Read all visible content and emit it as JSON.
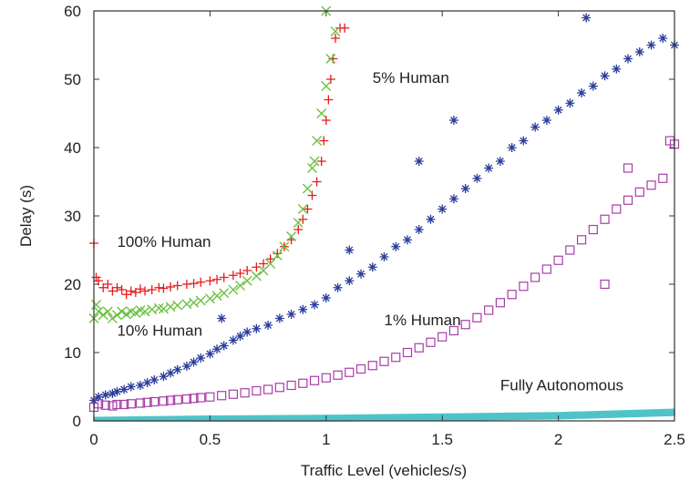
{
  "chart_data": {
    "type": "scatter",
    "title": "",
    "xlabel": "Traffic Level (vehicles/s)",
    "ylabel": "Delay (s)",
    "xlim": [
      0,
      2.5
    ],
    "ylim": [
      0,
      60
    ],
    "x_ticks": [
      "0",
      "0.5",
      "1",
      "1.5",
      "2",
      "2.5"
    ],
    "y_ticks": [
      "0",
      "10",
      "20",
      "30",
      "40",
      "50",
      "60"
    ],
    "grid": false,
    "series": [
      {
        "name": "100% Human",
        "marker": "plus",
        "color": "#e8191b",
        "points": [
          [
            0.0,
            26
          ],
          [
            0.01,
            21
          ],
          [
            0.02,
            20.5
          ],
          [
            0.04,
            19.5
          ],
          [
            0.06,
            20
          ],
          [
            0.08,
            19
          ],
          [
            0.1,
            19.5
          ],
          [
            0.12,
            19.2
          ],
          [
            0.14,
            18.5
          ],
          [
            0.16,
            19
          ],
          [
            0.18,
            18.8
          ],
          [
            0.2,
            19.3
          ],
          [
            0.22,
            19
          ],
          [
            0.25,
            19.2
          ],
          [
            0.28,
            19.5
          ],
          [
            0.3,
            19.4
          ],
          [
            0.33,
            19.6
          ],
          [
            0.36,
            19.8
          ],
          [
            0.4,
            20
          ],
          [
            0.43,
            20.1
          ],
          [
            0.46,
            20.3
          ],
          [
            0.5,
            20.5
          ],
          [
            0.53,
            20.7
          ],
          [
            0.56,
            21
          ],
          [
            0.6,
            21.3
          ],
          [
            0.63,
            21.6
          ],
          [
            0.66,
            22
          ],
          [
            0.7,
            22.5
          ],
          [
            0.73,
            23
          ],
          [
            0.76,
            23.7
          ],
          [
            0.79,
            24.5
          ],
          [
            0.82,
            25.5
          ],
          [
            0.85,
            26.5
          ],
          [
            0.88,
            28
          ],
          [
            0.9,
            29.5
          ],
          [
            0.92,
            31
          ],
          [
            0.94,
            33
          ],
          [
            0.96,
            35
          ],
          [
            0.98,
            38
          ],
          [
            0.99,
            41
          ],
          [
            1.0,
            44
          ],
          [
            1.01,
            47
          ],
          [
            1.02,
            50
          ],
          [
            1.03,
            53
          ],
          [
            1.04,
            56
          ],
          [
            1.06,
            57.5
          ],
          [
            1.08,
            57.5
          ]
        ]
      },
      {
        "name": "10% Human",
        "marker": "cross",
        "color": "#6abf40",
        "points": [
          [
            0.0,
            15
          ],
          [
            0.01,
            17
          ],
          [
            0.02,
            16
          ],
          [
            0.04,
            15.5
          ],
          [
            0.06,
            16
          ],
          [
            0.08,
            15
          ],
          [
            0.1,
            15.5
          ],
          [
            0.12,
            16
          ],
          [
            0.14,
            15.6
          ],
          [
            0.16,
            16
          ],
          [
            0.18,
            15.8
          ],
          [
            0.2,
            16.2
          ],
          [
            0.22,
            16
          ],
          [
            0.25,
            16.3
          ],
          [
            0.28,
            16.5
          ],
          [
            0.3,
            16.4
          ],
          [
            0.33,
            16.7
          ],
          [
            0.36,
            16.9
          ],
          [
            0.4,
            17.1
          ],
          [
            0.43,
            17.3
          ],
          [
            0.46,
            17.6
          ],
          [
            0.5,
            17.9
          ],
          [
            0.53,
            18.3
          ],
          [
            0.56,
            18.7
          ],
          [
            0.6,
            19.2
          ],
          [
            0.63,
            19.8
          ],
          [
            0.66,
            20.5
          ],
          [
            0.7,
            21.2
          ],
          [
            0.73,
            22
          ],
          [
            0.76,
            23
          ],
          [
            0.79,
            24.2
          ],
          [
            0.82,
            25.5
          ],
          [
            0.85,
            27
          ],
          [
            0.88,
            29
          ],
          [
            0.9,
            31
          ],
          [
            0.92,
            34
          ],
          [
            0.94,
            37
          ],
          [
            0.96,
            41
          ],
          [
            0.98,
            45
          ],
          [
            1.0,
            49
          ],
          [
            1.02,
            53
          ],
          [
            1.04,
            57
          ],
          [
            1.0,
            60
          ],
          [
            0.95,
            38
          ]
        ]
      },
      {
        "name": "5% Human",
        "marker": "star",
        "color": "#2a3d9c",
        "points": [
          [
            0.0,
            3
          ],
          [
            0.02,
            3.5
          ],
          [
            0.05,
            3.8
          ],
          [
            0.08,
            4
          ],
          [
            0.1,
            4.3
          ],
          [
            0.13,
            4.6
          ],
          [
            0.16,
            5
          ],
          [
            0.2,
            5.2
          ],
          [
            0.23,
            5.6
          ],
          [
            0.26,
            6
          ],
          [
            0.3,
            6.5
          ],
          [
            0.33,
            7
          ],
          [
            0.36,
            7.5
          ],
          [
            0.4,
            8
          ],
          [
            0.43,
            8.6
          ],
          [
            0.46,
            9.2
          ],
          [
            0.5,
            9.8
          ],
          [
            0.53,
            10.5
          ],
          [
            0.56,
            11
          ],
          [
            0.6,
            11.8
          ],
          [
            0.63,
            12.4
          ],
          [
            0.66,
            13
          ],
          [
            0.7,
            13.5
          ],
          [
            0.75,
            14
          ],
          [
            0.8,
            15
          ],
          [
            0.85,
            15.6
          ],
          [
            0.9,
            16.3
          ],
          [
            0.95,
            17
          ],
          [
            1.0,
            18
          ],
          [
            1.05,
            19.5
          ],
          [
            1.1,
            20.5
          ],
          [
            1.15,
            21.5
          ],
          [
            1.2,
            22.5
          ],
          [
            1.25,
            24
          ],
          [
            1.3,
            25.5
          ],
          [
            1.35,
            26.5
          ],
          [
            1.4,
            28
          ],
          [
            1.45,
            29.5
          ],
          [
            1.5,
            31
          ],
          [
            1.55,
            32.5
          ],
          [
            1.6,
            34
          ],
          [
            1.65,
            35.5
          ],
          [
            1.7,
            37
          ],
          [
            1.75,
            38
          ],
          [
            1.8,
            40
          ],
          [
            1.85,
            41
          ],
          [
            1.9,
            43
          ],
          [
            1.95,
            44
          ],
          [
            2.0,
            45.5
          ],
          [
            2.05,
            46.5
          ],
          [
            2.1,
            48
          ],
          [
            2.15,
            49
          ],
          [
            2.2,
            50.5
          ],
          [
            2.25,
            51.5
          ],
          [
            2.3,
            53
          ],
          [
            2.35,
            54
          ],
          [
            2.4,
            55
          ],
          [
            2.45,
            56
          ],
          [
            2.5,
            55
          ],
          [
            2.12,
            59
          ],
          [
            1.55,
            44
          ],
          [
            1.4,
            38
          ],
          [
            0.55,
            15
          ],
          [
            1.1,
            25
          ]
        ]
      },
      {
        "name": "1% Human",
        "marker": "square",
        "color": "#a83ea8",
        "points": [
          [
            0.0,
            2
          ],
          [
            0.02,
            2.5
          ],
          [
            0.05,
            2.3
          ],
          [
            0.08,
            2.2
          ],
          [
            0.1,
            2.4
          ],
          [
            0.13,
            2.4
          ],
          [
            0.16,
            2.5
          ],
          [
            0.2,
            2.6
          ],
          [
            0.23,
            2.7
          ],
          [
            0.26,
            2.8
          ],
          [
            0.3,
            2.9
          ],
          [
            0.33,
            3
          ],
          [
            0.36,
            3.1
          ],
          [
            0.4,
            3.2
          ],
          [
            0.43,
            3.3
          ],
          [
            0.46,
            3.4
          ],
          [
            0.5,
            3.5
          ],
          [
            0.55,
            3.7
          ],
          [
            0.6,
            3.9
          ],
          [
            0.65,
            4.1
          ],
          [
            0.7,
            4.4
          ],
          [
            0.75,
            4.6
          ],
          [
            0.8,
            4.9
          ],
          [
            0.85,
            5.2
          ],
          [
            0.9,
            5.5
          ],
          [
            0.95,
            5.9
          ],
          [
            1.0,
            6.3
          ],
          [
            1.05,
            6.7
          ],
          [
            1.1,
            7.1
          ],
          [
            1.15,
            7.6
          ],
          [
            1.2,
            8.1
          ],
          [
            1.25,
            8.7
          ],
          [
            1.3,
            9.3
          ],
          [
            1.35,
            10
          ],
          [
            1.4,
            10.7
          ],
          [
            1.45,
            11.5
          ],
          [
            1.5,
            12.3
          ],
          [
            1.55,
            13.2
          ],
          [
            1.6,
            14.1
          ],
          [
            1.65,
            15.1
          ],
          [
            1.7,
            16.2
          ],
          [
            1.75,
            17.3
          ],
          [
            1.8,
            18.5
          ],
          [
            1.85,
            19.7
          ],
          [
            1.9,
            21
          ],
          [
            1.95,
            22.2
          ],
          [
            2.0,
            23.5
          ],
          [
            2.05,
            25
          ],
          [
            2.1,
            26.5
          ],
          [
            2.15,
            28
          ],
          [
            2.2,
            29.5
          ],
          [
            2.25,
            31
          ],
          [
            2.3,
            32.3
          ],
          [
            2.35,
            33.5
          ],
          [
            2.4,
            34.5
          ],
          [
            2.45,
            35.5
          ],
          [
            2.48,
            41
          ],
          [
            2.5,
            40.5
          ],
          [
            2.2,
            20
          ],
          [
            2.3,
            37
          ]
        ]
      },
      {
        "name": "Fully Autonomous",
        "marker": "band",
        "color": "#4fc4c8",
        "points": [
          [
            0.0,
            0.2
          ],
          [
            0.5,
            0.4
          ],
          [
            1.0,
            0.5
          ],
          [
            1.5,
            0.7
          ],
          [
            2.0,
            0.9
          ],
          [
            2.5,
            1.4
          ]
        ]
      }
    ],
    "annotations": [
      {
        "text": "100% Human",
        "x": 0.1,
        "y": 25.5
      },
      {
        "text": "10% Human",
        "x": 0.1,
        "y": 12.5
      },
      {
        "text": "5% Human",
        "x": 1.2,
        "y": 49.5
      },
      {
        "text": "1% Human",
        "x": 1.25,
        "y": 14
      },
      {
        "text": "Fully Autonomous",
        "x": 1.75,
        "y": 4.5
      }
    ]
  }
}
